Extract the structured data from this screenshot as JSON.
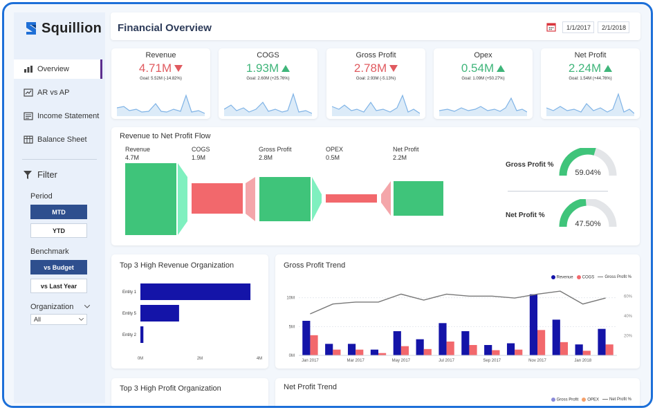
{
  "app": {
    "brand": "Squillion"
  },
  "sidebar": {
    "nav": [
      {
        "label": "Overview",
        "icon": "overview-icon"
      },
      {
        "label": "AR vs AP",
        "icon": "ar-ap-icon"
      },
      {
        "label": "Income Statement",
        "icon": "income-statement-icon"
      },
      {
        "label": "Balance Sheet",
        "icon": "balance-sheet-icon"
      }
    ],
    "filter_label": "Filter",
    "period_label": "Period",
    "period_options": [
      "MTD",
      "YTD"
    ],
    "benchmark_label": "Benchmark",
    "benchmark_options": [
      "vs Budget",
      "vs Last Year"
    ],
    "organization_label": "Organization",
    "organization_value": "All"
  },
  "header": {
    "title": "Financial Overview",
    "date_from": "1/1/2017",
    "date_to": "2/1/2018"
  },
  "kpis": [
    {
      "title": "Revenue",
      "value": "4.71M",
      "goal": "Goal: 5.52M (-14.82%)",
      "trend": "down"
    },
    {
      "title": "COGS",
      "value": "1.93M",
      "goal": "Goal: 2.60M (+25.76%)",
      "trend": "up"
    },
    {
      "title": "Gross Profit",
      "value": "2.78M",
      "goal": "Goal: 2.93M (-5.13%)",
      "trend": "down"
    },
    {
      "title": "Opex",
      "value": "0.54M",
      "goal": "Goal: 1.09M (+50.27%)",
      "trend": "up"
    },
    {
      "title": "Net Profit",
      "value": "2.24M",
      "goal": "Goal: 1.54M (+44.76%)",
      "trend": "up"
    }
  ],
  "flow": {
    "title": "Revenue to Net Profit Flow",
    "items": [
      {
        "label": "Revenue",
        "value": "4.7M",
        "num": 4.7
      },
      {
        "label": "COGS",
        "value": "1.9M",
        "num": 1.9
      },
      {
        "label": "Gross Profit",
        "value": "2.8M",
        "num": 2.8
      },
      {
        "label": "OPEX",
        "value": "0.5M",
        "num": 0.5
      },
      {
        "label": "Net Profit",
        "value": "2.2M",
        "num": 2.2
      }
    ]
  },
  "gauges": [
    {
      "label": "Gross Profit %",
      "value": "59.04%",
      "pct": 59.04
    },
    {
      "label": "Net Profit %",
      "value": "47.50%",
      "pct": 47.5
    }
  ],
  "revenue_chart": {
    "title": "Top 3 High Revenue Organization",
    "x_ticks": [
      "0M",
      "2M",
      "4M"
    ]
  },
  "profit_org_title": "Top 3 High Profit Organization",
  "net_profit_title": "Net Profit Trend",
  "net_profit_legend": [
    "Gross Profit",
    "OPEX",
    "Net Profit %"
  ],
  "gross_chart": {
    "title": "Gross Profit Trend",
    "legend": [
      "Revenue",
      "COGS",
      "Gross Profit %"
    ],
    "y_ticks_left": [
      "0M",
      "5M",
      "10M"
    ],
    "y_ticks_right": [
      "20%",
      "40%",
      "60%"
    ],
    "x_labels": [
      "Jan 2017",
      "Mar 2017",
      "May 2017",
      "Jul 2017",
      "Sep 2017",
      "Nov 2017",
      "Jan 2018"
    ]
  },
  "colors": {
    "navy": "#1414a8",
    "coral": "#f2686c",
    "green": "#3fc47a",
    "pink": "#f4a6aa",
    "mint": "#7ff0bf"
  },
  "chart_data": [
    {
      "type": "bar",
      "title": "Top 3 High Revenue Organization",
      "orientation": "horizontal",
      "categories": [
        "Entity 1",
        "Entity 5",
        "Entity 2"
      ],
      "values": [
        3.7,
        1.3,
        0.1
      ],
      "xlim": [
        0,
        4
      ],
      "xlabel": "",
      "ylabel": ""
    },
    {
      "type": "bar",
      "title": "Gross Profit Trend",
      "categories": [
        "Jan 2017",
        "Feb 2017",
        "Mar 2017",
        "Apr 2017",
        "May 2017",
        "Jun 2017",
        "Jul 2017",
        "Aug 2017",
        "Sep 2017",
        "Oct 2017",
        "Nov 2017",
        "Dec 2017",
        "Jan 2018",
        "Feb 2018"
      ],
      "series": [
        {
          "name": "Revenue",
          "kind": "bar",
          "values": [
            6.0,
            2.0,
            2.0,
            1.0,
            4.2,
            2.8,
            5.6,
            4.2,
            1.8,
            2.1,
            10.6,
            6.2,
            1.9,
            4.6
          ]
        },
        {
          "name": "COGS",
          "kind": "bar",
          "values": [
            3.5,
            1.0,
            1.0,
            0.4,
            1.6,
            1.1,
            2.4,
            1.8,
            0.9,
            1.0,
            4.4,
            2.3,
            0.8,
            1.9
          ]
        },
        {
          "name": "Gross Profit %",
          "kind": "line",
          "axis": "right",
          "values": [
            42,
            52,
            54,
            54,
            62,
            56,
            62,
            60,
            60,
            58,
            62,
            65,
            52,
            58
          ]
        }
      ],
      "ylim": [
        0,
        12
      ],
      "ylim_right": [
        0,
        70
      ],
      "legend": "top-right"
    }
  ]
}
